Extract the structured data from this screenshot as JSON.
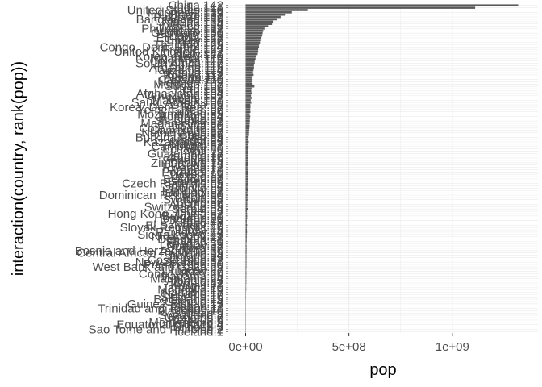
{
  "chart_data": {
    "type": "bar",
    "orientation": "horizontal",
    "xlabel": "pop",
    "ylabel": "interaction(country, rank(pop))",
    "xlim": [
      0,
      1318683096
    ],
    "x_ticks": [
      {
        "value": 0,
        "label": "0e+00"
      },
      {
        "value": 500000000,
        "label": "5e+08"
      },
      {
        "value": 1000000000,
        "label": "1e+09"
      }
    ],
    "grid": true,
    "legend": "none",
    "bar_color": "#595959",
    "panel_color": "#ffffff",
    "grid_color": "#ebebeb",
    "categories": [
      "China.142",
      "India.141",
      "United States.140",
      "Indonesia.139",
      "Brazil.138",
      "Pakistan.137",
      "Bangladesh.136",
      "Nigeria.135",
      "Japan.134",
      "Mexico.133",
      "Philippines.132",
      "Vietnam.131",
      "Germany.130",
      "Egypt.129",
      "Ethiopia.128",
      "Turkey.127",
      "Iran.126",
      "Thailand.125",
      "Congo, Dem. Rep..124",
      "France.123",
      "United Kingdom.122",
      "Italy.121",
      "Korea, Rep..120",
      "Myanmar.119",
      "Colombia.118",
      "South Africa.117",
      "Spain.116",
      "Argentina.115",
      "Tanzania.114",
      "Kenya.113",
      "Poland.112",
      "Algeria.111",
      "Canada.110",
      "Uganda.109",
      "Morocco.108",
      "Sudan.107",
      "Peru.106",
      "Iraq.105",
      "Afghanistan.104",
      "Venezuela.103",
      "Nepal.102",
      "Malaysia.101",
      "Saudi Arabia.100",
      "Ghana.99",
      "Korea, Dem. Rep..98",
      "Yemen, Rep..97",
      "Taiwan.96",
      "Mozambique.95",
      "Romania.94",
      "Australia.93",
      "Sri Lanka.92",
      "Madagascar.91",
      "Syria.90",
      "Cote d'Ivoire.89",
      "Cameroon.88",
      "Netherlands.87",
      "Chile.86",
      "Burkina Faso.85",
      "Niger.84",
      "Kazakhstan.83",
      "Malawi.82",
      "Cambodia.81",
      "Ecuador.80",
      "Mali.79",
      "Guatemala.78",
      "Zambia.77",
      "Angola.76",
      "Senegal.75",
      "Zimbabwe.74",
      "Cuba.73",
      "Rwanda.72",
      "Greece.71",
      "Portugal.70",
      "Tunisia.69",
      "Chad.68",
      "Belgium.67",
      "Guinea.66",
      "Czech Republic.65",
      "Somalia.64",
      "Bolivia.63",
      "Hungary.62",
      "Burundi.61",
      "Dominican Republic.60",
      "Haiti.59",
      "Sweden.58",
      "Benin.57",
      "Austria.56",
      "Switzerland.55",
      "Serbia.54",
      "Israel.53",
      "Hong Kong, China.52",
      "Bulgaria.51",
      "Honduras.50",
      "Jordan.49",
      "Togo.48",
      "El Salvador.47",
      "Slovak Republic.46",
      "Libya.45",
      "Paraguay.44",
      "Sierra Leone.43",
      "Nicaragua.42",
      "Denmark.41",
      "Finland.40",
      "Lebanon.39",
      "Norway.38",
      "Eritrea.37",
      "Bosnia and Herzegovina.36",
      "Central African Republic.35",
      "Ireland.34",
      "Croatia.33",
      "Costa Rica.32",
      "New Zealand.31",
      "Puerto Rico.30",
      "West Bank and Gaza.29",
      "Liberia.28",
      "Uruguay.27",
      "Congo, Rep..26",
      "Panama.25",
      "Mauritania.24",
      "Albania.23",
      "Oman.22",
      "Kuwait.21",
      "Jamaica.20",
      "Mongolia.19",
      "Namibia.18",
      "Lesotho.17",
      "Slovenia.16",
      "Botswana.15",
      "Gambia.14",
      "Guinea-Bissau.13",
      "Gabon.12",
      "Trinidad and Tobago.11",
      "Mauritius.10",
      "Bahrain.9",
      "Swaziland.8",
      "Comoros.7",
      "Reunion.6",
      "Montenegro.5",
      "Equatorial Guinea.4",
      "Djibouti.3",
      "Sao Tome and Principe.2",
      "Iceland.1"
    ],
    "values": [
      1318683096,
      1110396331,
      301139947,
      223547000,
      190010647,
      169270617,
      150448339,
      135031164,
      127467972,
      108700891,
      91077287,
      85262356,
      82400996,
      80264543,
      76511887,
      71158647,
      69453570,
      65068149,
      64606759,
      61083916,
      60776238,
      58147733,
      49044790,
      47761980,
      44227550,
      43997828,
      40448191,
      40301927,
      38139640,
      35610177,
      38518241,
      33333216,
      33390141,
      29170398,
      33757175,
      42292929,
      28674757,
      27499638,
      31889923,
      26084662,
      28901790,
      24821286,
      27601038,
      22873338,
      23301725,
      22211743,
      23174294,
      19951656,
      22276056,
      20434176,
      20378239,
      19167654,
      19314747,
      18013409,
      17696293,
      16570613,
      16284741,
      14326203,
      12894865,
      15300000,
      13327079,
      14131858,
      13755680,
      12031795,
      12572928,
      11746035,
      12420476,
      12267493,
      12311143,
      11416987,
      8860588,
      10706290,
      10642836,
      10276158,
      10238807,
      10392226,
      9947814,
      10228744,
      9118773,
      9119152,
      9956108,
      8390505,
      9319622,
      8502814,
      9031088,
      8078314,
      8199783,
      7554661,
      10150265,
      6426679,
      6980412,
      7322858,
      7483763,
      6053193,
      5701579,
      6939688,
      5447502,
      6036914,
      6667147,
      6144562,
      5675356,
      5468120,
      5238460,
      3921278,
      4627926,
      4906585,
      4552198,
      4369038,
      4109086,
      4493312,
      4133884,
      4115771,
      3942491,
      4018332,
      3193942,
      3447496,
      3800610,
      3242173,
      3270065,
      3600523,
      3204897,
      2505559,
      2780132,
      2874127,
      2055080,
      2012649,
      2009245,
      1639131,
      1688359,
      1472041,
      1454867,
      1056608,
      1250882,
      708573,
      1133066,
      710960,
      798094,
      684736,
      551201,
      496374,
      199579,
      301931
    ]
  }
}
